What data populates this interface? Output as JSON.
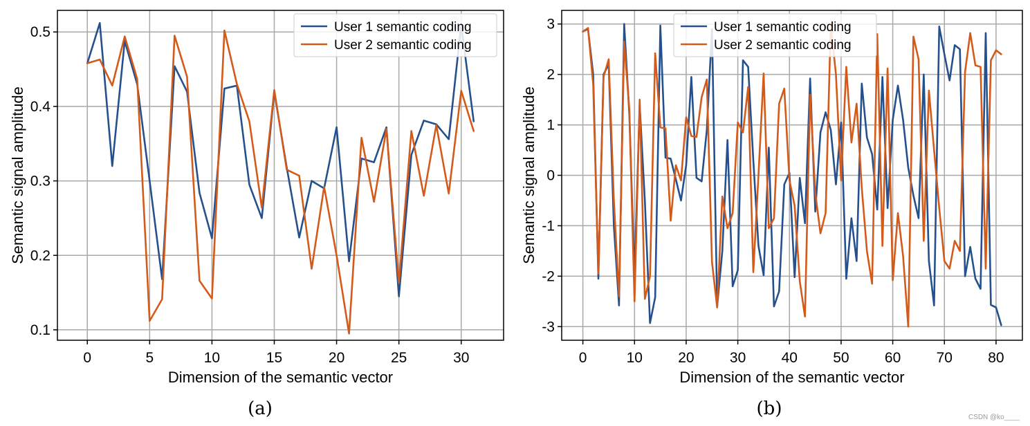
{
  "chart_data": [
    {
      "panel_label": "(a)",
      "type": "line",
      "xlabel": "Dimension of the semantic vector",
      "ylabel": "Semantic signal amplitude",
      "xlim": [
        -2.4,
        33.4
      ],
      "ylim": [
        0.086,
        0.529
      ],
      "xticks": [
        0,
        5,
        10,
        15,
        20,
        25,
        30
      ],
      "yticks": [
        0.1,
        0.2,
        0.3,
        0.4,
        0.5
      ],
      "xtick_labels": [
        "0",
        "5",
        "10",
        "15",
        "20",
        "25",
        "30"
      ],
      "ytick_labels": [
        "0.1",
        "0.2",
        "0.3",
        "0.4",
        "0.5"
      ],
      "grid": true,
      "legend_position": "top-right",
      "series": [
        {
          "name": "User 1 semantic coding",
          "color": "#24508d",
          "values": [
            0.458,
            0.512,
            0.32,
            0.488,
            0.43,
            0.3,
            0.168,
            0.454,
            0.42,
            0.284,
            0.223,
            0.424,
            0.428,
            0.295,
            0.25,
            0.42,
            0.318,
            0.224,
            0.3,
            0.29,
            0.372,
            0.192,
            0.33,
            0.325,
            0.372,
            0.145,
            0.335,
            0.381,
            0.376,
            0.356,
            0.51,
            0.38
          ]
        },
        {
          "name": "User 2 semantic coding",
          "color": "#d45a1a",
          "values": [
            0.458,
            0.463,
            0.428,
            0.494,
            0.437,
            0.112,
            0.141,
            0.495,
            0.44,
            0.166,
            0.142,
            0.502,
            0.43,
            0.38,
            0.264,
            0.422,
            0.315,
            0.307,
            0.182,
            0.292,
            0.2,
            0.095,
            0.358,
            0.272,
            0.37,
            0.163,
            0.367,
            0.28,
            0.375,
            0.283,
            0.421,
            0.367
          ]
        }
      ]
    },
    {
      "panel_label": "(b)",
      "type": "line",
      "xlabel": "Dimension of the semantic vector",
      "ylabel": "Semantic signal amplitude",
      "xlim": [
        -4.1,
        85.1
      ],
      "ylim": [
        -3.27,
        3.27
      ],
      "xticks": [
        0,
        10,
        20,
        30,
        40,
        50,
        60,
        70,
        80
      ],
      "yticks": [
        3,
        2,
        1,
        0,
        -1,
        -2,
        -3
      ],
      "xtick_labels": [
        "0",
        "10",
        "20",
        "30",
        "40",
        "50",
        "60",
        "70",
        "80"
      ],
      "ytick_labels": [
        "3",
        "2",
        "1",
        "0",
        "-1",
        "-2",
        "-3"
      ],
      "grid": true,
      "legend_position": "top-center",
      "series": [
        {
          "name": "User 1 semantic coding",
          "color": "#24508d",
          "values": [
            2.85,
            2.9,
            2.0,
            -2.05,
            2.0,
            2.2,
            -1.0,
            -2.58,
            3.0,
            1.2,
            -2.0,
            1.4,
            -0.5,
            -2.93,
            -2.42,
            2.97,
            0.35,
            0.33,
            -0.08,
            -0.5,
            0.2,
            1.95,
            -0.05,
            -0.12,
            0.9,
            2.9,
            -2.6,
            -1.5,
            0.7,
            -2.2,
            -1.88,
            2.28,
            2.15,
            0.3,
            -1.4,
            -1.98,
            0.55,
            -2.6,
            -2.3,
            -0.18,
            0.05,
            -2.02,
            -0.05,
            -0.95,
            1.92,
            -0.72,
            0.85,
            1.25,
            0.9,
            -0.18,
            1.05,
            -2.05,
            -0.85,
            -1.7,
            1.82,
            0.75,
            0.42,
            -0.68,
            1.95,
            -0.65,
            1.1,
            1.78,
            1.1,
            0.15,
            -0.4,
            -0.85,
            2.0,
            -1.7,
            -2.58,
            2.95,
            2.4,
            1.88,
            2.58,
            2.5,
            -2.0,
            -1.42,
            -2.05,
            -2.25,
            2.82,
            -2.57,
            -2.62,
            -2.97
          ]
        },
        {
          "name": "User 2 semantic coding",
          "color": "#d45a1a",
          "values": [
            2.85,
            2.92,
            1.8,
            -1.95,
            1.95,
            2.3,
            -0.5,
            -2.4,
            2.65,
            1.3,
            -2.5,
            1.5,
            -2.45,
            -2.0,
            2.42,
            0.95,
            0.93,
            -0.9,
            0.2,
            -0.1,
            1.15,
            0.78,
            0.76,
            1.55,
            1.9,
            -1.72,
            -2.62,
            -0.42,
            -1.05,
            -0.75,
            1.05,
            0.85,
            1.75,
            -1.92,
            0.0,
            2.02,
            -1.05,
            -0.85,
            1.42,
            1.72,
            -0.1,
            -0.6,
            -2.1,
            -2.8,
            1.6,
            -0.35,
            -1.15,
            -0.75,
            3.0,
            2.0,
            -0.1,
            2.15,
            0.65,
            1.42,
            -0.25,
            -1.5,
            -2.15,
            2.8,
            -1.4,
            2.12,
            -2.08,
            -0.75,
            -1.6,
            -3.0,
            2.75,
            2.3,
            -1.3,
            1.68,
            0.5,
            -0.65,
            -1.7,
            -1.85,
            -1.3,
            -1.5,
            2.05,
            2.82,
            2.18,
            2.15,
            -1.85,
            2.28,
            2.48,
            2.4
          ]
        }
      ]
    }
  ],
  "watermark": "CSDN @ko____"
}
